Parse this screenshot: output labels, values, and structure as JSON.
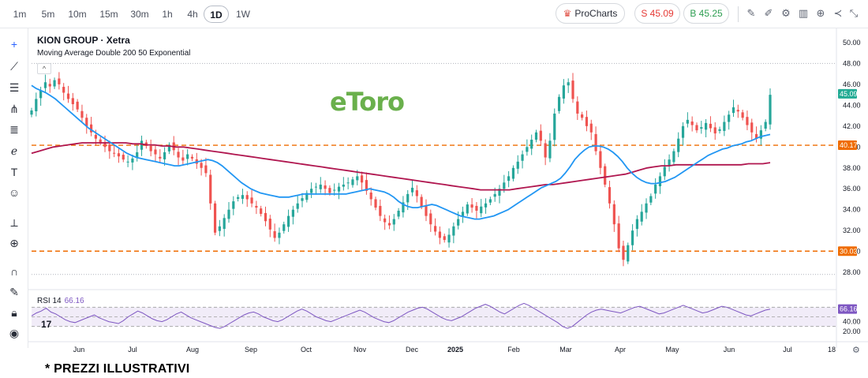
{
  "toolbar": {
    "timeframes": [
      "1m",
      "5m",
      "10m",
      "15m",
      "30m",
      "1h",
      "4h",
      "1D",
      "1W"
    ],
    "active_timeframe": "1D",
    "procharts_label": "ProCharts",
    "sell_label": "S 45.09",
    "buy_label": "B 45.25",
    "icons": [
      "pencil-icon",
      "ruler-icon",
      "settings-icon",
      "indicators-icon",
      "add-icon",
      "share-icon",
      "collapse-icon"
    ]
  },
  "left_tools": [
    "crosshair-icon",
    "trendline-icon",
    "horizontal-lines-icon",
    "pitchfork-icon",
    "fib-icon",
    "brush-icon",
    "text-icon",
    "emoji-icon",
    "ruler-icon",
    "zoom-icon",
    "magnet-icon",
    "lock-draw-icon",
    "lock-icon",
    "eye-icon"
  ],
  "legend": {
    "title": "KION GROUP · Xetra",
    "indicator": "Moving Average Double 200 50 Exponential"
  },
  "rsi": {
    "label": "RSI 14",
    "value": "66.16"
  },
  "brand": "eToro",
  "footer_note": "* PREZZI ILLUSTRATIVI",
  "colors": {
    "up": "#26a69a",
    "down": "#ef5350",
    "ema50": "#2196f3",
    "ema200": "#b0164f",
    "level": "#ef6c00",
    "rsi": "#7e57c2",
    "current": "#22ab94"
  },
  "chart_data": {
    "type": "candlestick",
    "x_ticks": [
      "Jun",
      "Jul",
      "Aug",
      "Sep",
      "Oct",
      "Nov",
      "Dec",
      "2025",
      "Feb",
      "Mar",
      "Apr",
      "May",
      "Jun",
      "Jul",
      "18"
    ],
    "y_ticks": [
      "28.00",
      "30.00",
      "32.00",
      "34.00",
      "36.00",
      "38.00",
      "40.00",
      "42.00",
      "44.00",
      "46.00",
      "48.00",
      "50.00"
    ],
    "ylim": [
      26.8,
      50.6
    ],
    "horizontal_levels": [
      {
        "value": 40.17,
        "label": "40.17"
      },
      {
        "value": 30.03,
        "label": "30.03"
      }
    ],
    "current_price": {
      "value": 45.09,
      "label": "45.09"
    },
    "series_close": [
      43.5,
      44.6,
      45.4,
      46.2,
      45.8,
      46.4,
      46.0,
      45.2,
      44.6,
      44.1,
      43.6,
      42.8,
      42.0,
      41.4,
      40.8,
      40.4,
      40.0,
      39.6,
      39.4,
      39.1,
      38.8,
      38.6,
      38.9,
      39.5,
      40.6,
      40.1,
      39.6,
      39.3,
      38.9,
      39.5,
      40.2,
      39.7,
      39.0,
      38.7,
      39.3,
      38.9,
      38.4,
      38.0,
      37.5,
      34.6,
      31.8,
      32.4,
      33.2,
      34.0,
      34.8,
      35.2,
      35.4,
      35.0,
      34.6,
      34.2,
      33.6,
      32.9,
      32.1,
      31.3,
      31.8,
      32.6,
      33.4,
      34.0,
      34.6,
      35.1,
      35.6,
      36.0,
      36.2,
      36.4,
      36.0,
      35.6,
      35.9,
      36.2,
      36.4,
      36.6,
      36.9,
      37.2,
      36.6,
      35.8,
      35.0,
      34.2,
      33.4,
      32.8,
      32.5,
      33.1,
      33.9,
      34.7,
      35.5,
      36.1,
      35.3,
      34.3,
      33.4,
      32.6,
      31.9,
      31.3,
      31.1,
      31.6,
      32.4,
      33.1,
      33.8,
      34.5,
      34.2,
      33.9,
      34.3,
      34.6,
      35.0,
      35.5,
      36.0,
      36.6,
      37.2,
      38.0,
      38.6,
      39.3,
      40.0,
      40.7,
      41.4,
      40.6,
      39.0,
      40.6,
      43.2,
      44.8,
      45.9,
      46.2,
      44.6,
      43.2,
      42.8,
      42.0,
      41.4,
      39.6,
      38.0,
      36.4,
      34.6,
      32.6,
      30.3,
      29.2,
      30.6,
      32.0,
      33.1,
      33.8,
      34.6,
      35.3,
      36.4,
      37.2,
      38.1,
      38.8,
      39.6,
      40.8,
      42.0,
      42.6,
      42.1,
      41.6,
      41.9,
      42.3,
      41.8,
      41.3,
      41.7,
      42.4,
      43.1,
      43.8,
      43.4,
      42.8,
      42.1,
      41.4,
      40.8,
      41.6,
      42.4,
      45.0
    ],
    "ema50": [
      45.9,
      45.6,
      45.4,
      45.2,
      44.9,
      44.6,
      44.2,
      43.8,
      43.4,
      43.0,
      42.6,
      42.2,
      41.8,
      41.5,
      41.2,
      40.9,
      40.6,
      40.3,
      40.0,
      39.7,
      39.4,
      39.2,
      39.0,
      38.9,
      38.8,
      38.7,
      38.6,
      38.5,
      38.4,
      38.3,
      38.2,
      38.2,
      38.3,
      38.4,
      38.5,
      38.6,
      38.7,
      38.8,
      38.7,
      38.5,
      38.2,
      37.8,
      37.4,
      37.0,
      36.6,
      36.3,
      36.0,
      35.8,
      35.6,
      35.5,
      35.4,
      35.3,
      35.2,
      35.2,
      35.2,
      35.3,
      35.4,
      35.5,
      35.5,
      35.5,
      35.5,
      35.5,
      35.5,
      35.5,
      35.5,
      35.5,
      35.5,
      35.6,
      35.7,
      35.8,
      35.9,
      36.0,
      35.9,
      35.8,
      35.7,
      35.5,
      35.2,
      34.8,
      34.5,
      34.3,
      34.2,
      34.2,
      34.3,
      34.4,
      34.5,
      34.4,
      34.2,
      34.0,
      33.8,
      33.6,
      33.4,
      33.3,
      33.2,
      33.1,
      33.1,
      33.2,
      33.3,
      33.4,
      33.6,
      33.8,
      34.0,
      34.3,
      34.6,
      34.9,
      35.2,
      35.5,
      35.8,
      36.1,
      36.3,
      36.5,
      36.7,
      37.0,
      37.5,
      38.1,
      38.8,
      39.3,
      39.7,
      40.0,
      40.1,
      40.1,
      40.0,
      39.8,
      39.5,
      39.1,
      38.6,
      38.0,
      37.5,
      37.1,
      36.8,
      36.6,
      36.5,
      36.5,
      36.6,
      36.7,
      36.9,
      37.1,
      37.4,
      37.7,
      38.0,
      38.3,
      38.6,
      38.9,
      39.2,
      39.4,
      39.6,
      39.8,
      39.9,
      40.1,
      40.2,
      40.3,
      40.5,
      40.6,
      40.8,
      41.0,
      41.1,
      41.2
    ],
    "ema200": [
      39.4,
      39.6,
      39.8,
      40.0,
      40.1,
      40.2,
      40.3,
      40.4,
      40.4,
      40.4,
      40.4,
      40.4,
      40.4,
      40.4,
      40.3,
      40.3,
      40.2,
      40.2,
      40.1,
      40.1,
      40.0,
      40.0,
      39.9,
      39.8,
      39.7,
      39.6,
      39.5,
      39.4,
      39.3,
      39.2,
      39.1,
      39.0,
      38.9,
      38.8,
      38.7,
      38.6,
      38.5,
      38.4,
      38.3,
      38.2,
      38.1,
      38.0,
      37.9,
      37.8,
      37.7,
      37.6,
      37.5,
      37.4,
      37.3,
      37.2,
      37.1,
      37.0,
      36.9,
      36.8,
      36.7,
      36.6,
      36.5,
      36.4,
      36.3,
      36.2,
      36.1,
      36.0,
      35.9,
      35.9,
      35.9,
      35.9,
      35.9,
      36.0,
      36.1,
      36.2,
      36.3,
      36.4,
      36.4,
      36.5,
      36.6,
      36.7,
      36.8,
      36.9,
      37.0,
      37.1,
      37.2,
      37.3,
      37.4,
      37.6,
      37.8,
      38.0,
      38.1,
      38.2,
      38.2,
      38.3,
      38.3,
      38.3,
      38.3,
      38.3,
      38.3,
      38.3,
      38.3,
      38.3,
      38.3,
      38.4,
      38.4,
      38.4,
      38.5
    ],
    "rsi": {
      "value": 66.16,
      "levels": [
        70,
        50,
        30
      ],
      "series": [
        52,
        58,
        62,
        68,
        60,
        56,
        50,
        44,
        40,
        38,
        42,
        46,
        50,
        54,
        48,
        44,
        40,
        38,
        36,
        42,
        50,
        56,
        62,
        58,
        52,
        46,
        42,
        40,
        44,
        50,
        56,
        60,
        54,
        48,
        44,
        40,
        36,
        32,
        28,
        26,
        30,
        36,
        42,
        48,
        54,
        58,
        60,
        56,
        50,
        46,
        42,
        40,
        44,
        50,
        56,
        62,
        66,
        62,
        56,
        50,
        46,
        42,
        40,
        44,
        48,
        52,
        56,
        60,
        64,
        60,
        54,
        48,
        44,
        40,
        38,
        42,
        48,
        54,
        60,
        64,
        68,
        70,
        66,
        60,
        54,
        48,
        44,
        42,
        46,
        50,
        56,
        62,
        68,
        72,
        76,
        72,
        66,
        60,
        56,
        62,
        68,
        74,
        78,
        74,
        68,
        62,
        56,
        50,
        44,
        38,
        30,
        26,
        30,
        38,
        46,
        54,
        60,
        64,
        66,
        64,
        62,
        60,
        58,
        62,
        66,
        70,
        72,
        68,
        64,
        60,
        56,
        58,
        62,
        66,
        70,
        74,
        70,
        66,
        62,
        58,
        60,
        64,
        68,
        72,
        70,
        66,
        62,
        58,
        54,
        52,
        56,
        60,
        64,
        66
      ]
    }
  }
}
